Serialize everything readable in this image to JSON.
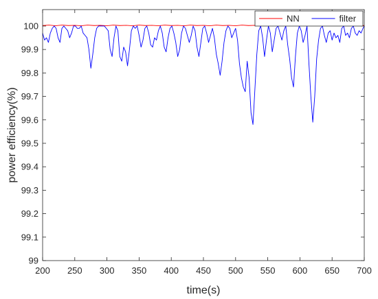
{
  "chart_data": {
    "type": "line",
    "xlabel": "time(s)",
    "ylabel": "power efficiency(%)",
    "xlim": [
      200,
      700
    ],
    "ylim": [
      99,
      100.07
    ],
    "x_ticks": [
      200,
      250,
      300,
      350,
      400,
      450,
      500,
      550,
      600,
      650,
      700
    ],
    "y_ticks": [
      99,
      99.1,
      99.2,
      99.3,
      99.4,
      99.5,
      99.6,
      99.7,
      99.8,
      99.9,
      100
    ],
    "y_tick_labels": [
      "99",
      "99.1",
      "99.2",
      "99.3",
      "99.4",
      "99.5",
      "99.6",
      "99.7",
      "99.8",
      "99.9",
      "100"
    ],
    "grid": false,
    "legend_position": "top-right",
    "series": [
      {
        "name": "NN",
        "color": "#ff0000",
        "x": [
          200,
          210,
          220,
          230,
          240,
          250,
          260,
          270,
          280,
          290,
          300,
          310,
          320,
          330,
          340,
          350,
          360,
          370,
          380,
          390,
          400,
          410,
          420,
          430,
          440,
          450,
          460,
          470,
          480,
          490,
          500,
          510,
          520,
          530,
          540,
          550,
          560,
          570,
          580,
          590,
          600,
          610,
          620,
          630,
          640,
          650,
          660,
          670,
          680,
          690,
          700
        ],
        "values": [
          100.002,
          100.004,
          100.001,
          100.004,
          100.002,
          100.003,
          100.001,
          100.004,
          100.002,
          100.003,
          100.001,
          100.004,
          100.002,
          100.003,
          100.001,
          100.004,
          100.002,
          100.003,
          100.001,
          100.004,
          100.002,
          100.003,
          100.001,
          100.004,
          100.002,
          100.003,
          100.001,
          100.004,
          100.002,
          100.003,
          100.001,
          100.004,
          100.002,
          100.003,
          100.001,
          100.004,
          100.002,
          100.003,
          100.001,
          100.004,
          100.002,
          100.003,
          100.001,
          100.004,
          100.002,
          100.003,
          100.001,
          100.004,
          100.002,
          100.003,
          100.002
        ]
      },
      {
        "name": "filter",
        "color": "#0000ff",
        "x": [
          200,
          203,
          206,
          209,
          212,
          215,
          218,
          221,
          224,
          227,
          230,
          233,
          236,
          239,
          242,
          245,
          248,
          251,
          254,
          257,
          260,
          263,
          266,
          269,
          272,
          275,
          278,
          281,
          284,
          287,
          290,
          293,
          296,
          299,
          302,
          305,
          308,
          311,
          314,
          317,
          320,
          323,
          326,
          329,
          332,
          335,
          338,
          341,
          344,
          347,
          350,
          353,
          356,
          359,
          362,
          365,
          368,
          371,
          374,
          377,
          380,
          383,
          386,
          389,
          392,
          395,
          398,
          401,
          404,
          407,
          410,
          413,
          416,
          419,
          422,
          425,
          428,
          431,
          434,
          437,
          440,
          443,
          446,
          449,
          452,
          455,
          458,
          461,
          464,
          467,
          470,
          473,
          476,
          479,
          482,
          485,
          488,
          491,
          494,
          497,
          500,
          503,
          506,
          509,
          512,
          515,
          518,
          521,
          524,
          527,
          530,
          533,
          536,
          539,
          542,
          545,
          548,
          551,
          554,
          557,
          560,
          563,
          566,
          569,
          572,
          575,
          578,
          581,
          584,
          587,
          590,
          593,
          596,
          599,
          602,
          605,
          608,
          611,
          614,
          617,
          620,
          623,
          626,
          629,
          632,
          635,
          638,
          641,
          644,
          647,
          650,
          653,
          656,
          659,
          662,
          665,
          668,
          671,
          674,
          677,
          680,
          683,
          686,
          689,
          692,
          695,
          698,
          700
        ],
        "values": [
          99.97,
          99.94,
          99.95,
          99.93,
          99.97,
          99.99,
          100.0,
          99.99,
          99.95,
          99.93,
          99.99,
          100.0,
          99.99,
          99.98,
          99.95,
          99.97,
          100.0,
          100.0,
          99.99,
          99.99,
          100.0,
          99.97,
          99.96,
          99.95,
          99.9,
          99.82,
          99.88,
          99.95,
          99.99,
          100.0,
          100.0,
          100.0,
          100.0,
          99.99,
          99.98,
          99.9,
          99.87,
          99.95,
          100.0,
          99.98,
          99.87,
          99.85,
          99.91,
          99.89,
          99.83,
          99.9,
          99.98,
          100.0,
          99.99,
          100.0,
          99.96,
          99.91,
          99.94,
          99.99,
          100.0,
          99.97,
          99.92,
          99.91,
          99.95,
          99.94,
          99.98,
          100.0,
          99.97,
          99.91,
          99.89,
          99.95,
          99.99,
          100.0,
          99.97,
          99.93,
          99.87,
          99.9,
          99.97,
          100.0,
          99.99,
          99.96,
          99.93,
          99.96,
          100.0,
          99.98,
          99.91,
          99.87,
          99.93,
          99.99,
          100.0,
          99.97,
          99.93,
          99.96,
          99.99,
          99.95,
          99.88,
          99.84,
          99.79,
          99.85,
          99.93,
          99.98,
          100.0,
          99.99,
          99.95,
          99.97,
          99.99,
          99.94,
          99.84,
          99.78,
          99.74,
          99.72,
          99.85,
          99.78,
          99.63,
          99.58,
          99.73,
          99.88,
          99.98,
          100.0,
          99.95,
          99.87,
          99.94,
          100.0,
          99.97,
          99.89,
          99.94,
          99.99,
          100.0,
          99.97,
          99.94,
          99.98,
          100.0,
          99.92,
          99.86,
          99.78,
          99.74,
          99.87,
          99.97,
          100.0,
          99.98,
          99.93,
          99.96,
          100.0,
          99.84,
          99.7,
          99.59,
          99.7,
          99.86,
          99.94,
          99.99,
          100.0,
          99.96,
          99.93,
          99.97,
          99.98,
          99.94,
          99.97,
          99.95,
          99.96,
          99.93,
          99.99,
          100.0,
          99.96,
          99.97,
          99.95,
          99.99,
          100.0,
          99.97,
          99.96,
          99.98,
          99.97,
          99.99,
          100.0
        ]
      }
    ]
  }
}
